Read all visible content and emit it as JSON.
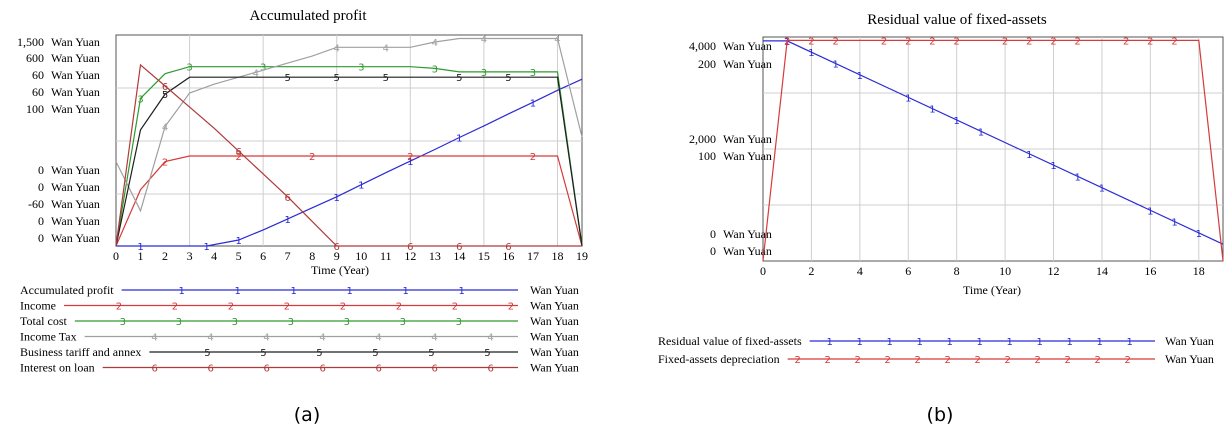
{
  "charts": [
    {
      "type": "line",
      "title": "Accumulated profit",
      "xlabel": "Time (Year)",
      "x_ticks": [
        "0",
        "1",
        "2",
        "3",
        "4",
        "5",
        "6",
        "7",
        "8",
        "9",
        "10",
        "11",
        "12",
        "13",
        "14",
        "15",
        "16",
        "17",
        "18",
        "19"
      ],
      "xlim": [
        0,
        19
      ],
      "y_axis_labels": [
        {
          "scale": "1,500",
          "unit": "Wan Yuan"
        },
        {
          "scale": "600",
          "unit": "Wan Yuan"
        },
        {
          "scale": "60",
          "unit": "Wan Yuan"
        },
        {
          "scale": "60",
          "unit": "Wan Yuan"
        },
        {
          "scale": "100",
          "unit": "Wan Yuan"
        },
        {
          "scale": "0",
          "unit": "Wan Yuan"
        },
        {
          "scale": "0",
          "unit": "Wan Yuan"
        },
        {
          "scale": "-60",
          "unit": "Wan Yuan"
        },
        {
          "scale": "0",
          "unit": "Wan Yuan"
        },
        {
          "scale": "0",
          "unit": "Wan Yuan"
        }
      ],
      "series": [
        {
          "name": "Accumulated profit",
          "marker": "1",
          "unit": "Wan Yuan",
          "color": "#2b2bd6",
          "ylim": [
            -600,
            1500
          ],
          "x": [
            0,
            1,
            2,
            3,
            3.7,
            5,
            6,
            7,
            8,
            9,
            10,
            11,
            12,
            13,
            14,
            15,
            16,
            17,
            18,
            19
          ],
          "y": [
            -600,
            -600,
            -600,
            -600,
            -600,
            -540,
            -440,
            -330,
            -220,
            -110,
            10,
            130,
            245,
            360,
            480,
            595,
            715,
            830,
            950,
            1060
          ]
        },
        {
          "name": "Income",
          "marker": "2",
          "unit": "Wan Yuan",
          "color": "#d63a3a",
          "ylim": [
            0,
            600
          ],
          "x": [
            0,
            1,
            2,
            3,
            4,
            5,
            6,
            7,
            8,
            9,
            10,
            11,
            12,
            13,
            14,
            15,
            16,
            17,
            18,
            19
          ],
          "y": [
            0,
            160,
            240,
            256,
            256,
            256,
            256,
            256,
            256,
            256,
            256,
            256,
            256,
            256,
            256,
            256,
            256,
            256,
            256,
            0
          ]
        },
        {
          "name": "Total cost",
          "marker": "3",
          "unit": "Wan Yuan",
          "color": "#2e9a2e",
          "ylim": [
            0,
            60
          ],
          "x": [
            0,
            1,
            2,
            3,
            4,
            5,
            6,
            7,
            8,
            9,
            10,
            11,
            12,
            13,
            14,
            15,
            16,
            17,
            18,
            19
          ],
          "y": [
            0,
            42,
            49,
            51,
            51,
            51,
            51,
            51,
            51,
            51,
            51,
            51,
            51,
            50.5,
            49.5,
            49.5,
            49.5,
            49.5,
            49.5,
            0
          ]
        },
        {
          "name": "Income Tax",
          "marker": "4",
          "unit": "Wan Yuan",
          "color": "#a0a0a0",
          "ylim": [
            -60,
            60
          ],
          "x": [
            0,
            1,
            2,
            3,
            4,
            5,
            6,
            7,
            8,
            9,
            10,
            11,
            12,
            13,
            14,
            15,
            16,
            17,
            18,
            19
          ],
          "y": [
            -12,
            -40,
            8,
            27,
            32,
            36,
            40,
            44,
            48,
            53,
            53,
            53,
            53,
            56,
            58,
            58,
            58,
            58,
            58,
            2
          ]
        },
        {
          "name": "Business tariff and annex",
          "marker": "5",
          "unit": "Wan Yuan",
          "color": "#1e1e1e",
          "ylim": [
            0,
            100
          ],
          "x": [
            0,
            1,
            2,
            3,
            4,
            5,
            6,
            7,
            8,
            9,
            10,
            11,
            12,
            13,
            14,
            15,
            16,
            17,
            18,
            19
          ],
          "y": [
            0,
            55,
            72,
            80,
            80,
            80,
            80,
            80,
            80,
            80,
            80,
            80,
            80,
            80,
            80,
            80,
            80,
            80,
            80,
            0
          ]
        },
        {
          "name": "Interest on loan",
          "marker": "6",
          "unit": "Wan Yuan",
          "color": "#b03a3a",
          "ylim": [
            0,
            60
          ],
          "x": [
            0,
            1,
            2,
            3,
            4,
            5,
            6,
            7,
            8,
            9,
            10,
            11,
            12,
            13,
            14,
            15,
            16,
            17,
            18,
            19
          ],
          "y": [
            0,
            51.5,
            45.5,
            39.5,
            33.5,
            27,
            20.5,
            14,
            7,
            0,
            0,
            0,
            0,
            0,
            0,
            0,
            0,
            0,
            0,
            0
          ]
        }
      ],
      "legend_position": "bottom",
      "caption": "(a)"
    },
    {
      "type": "line",
      "title": "Residual value of fixed-assets",
      "xlabel": "Time (Year)",
      "x_ticks": [
        "0",
        "2",
        "4",
        "6",
        "8",
        "10",
        "12",
        "14",
        "16",
        "18"
      ],
      "xlim": [
        0,
        19
      ],
      "y_axis_labels": [
        {
          "scale": "4,000",
          "unit": "Wan Yuan"
        },
        {
          "scale": "200",
          "unit": "Wan Yuan"
        },
        {
          "scale": "2,000",
          "unit": "Wan Yuan"
        },
        {
          "scale": "100",
          "unit": "Wan Yuan"
        },
        {
          "scale": "0",
          "unit": "Wan Yuan"
        },
        {
          "scale": "0",
          "unit": "Wan Yuan"
        }
      ],
      "series": [
        {
          "name": "Residual value of fixed-assets",
          "marker": "1",
          "unit": "Wan Yuan",
          "color": "#2b2bd6",
          "ylim": [
            0,
            4000
          ],
          "x": [
            0,
            1,
            19
          ],
          "y": [
            3930,
            3930,
            300
          ]
        },
        {
          "name": "Fixed-assets depreciation",
          "marker": "2",
          "unit": "Wan Yuan",
          "color": "#d63a3a",
          "ylim": [
            0,
            200
          ],
          "x": [
            0,
            1,
            18,
            19
          ],
          "y": [
            0,
            197,
            197,
            0
          ]
        }
      ],
      "legend_position": "bottom",
      "caption": "(b)"
    }
  ]
}
